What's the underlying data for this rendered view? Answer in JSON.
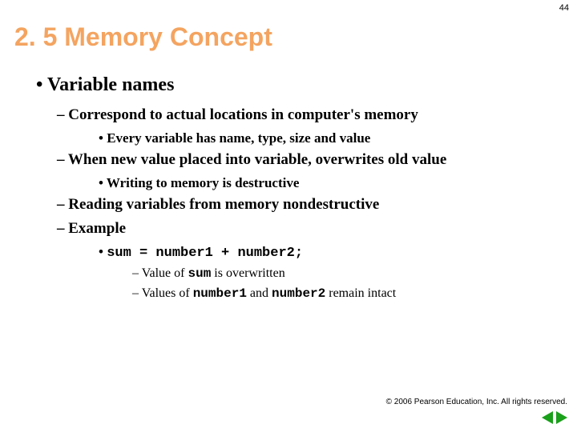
{
  "page_number": "44",
  "title": "2. 5 Memory Concept",
  "bullets": {
    "l1_1": "Variable names",
    "l2_1": "Correspond to actual locations in computer's memory",
    "l3_1": "Every variable has name, type, size and value",
    "l2_2": "When new value placed into variable, overwrites old value",
    "l3_2": "Writing to memory is destructive",
    "l2_3": "Reading variables from memory nondestructive",
    "l2_4": "Example",
    "code_sum": "sum",
    "code_eq": " = ",
    "code_n1": "number1",
    "code_plus": " + ",
    "code_n2": "number2",
    "code_semi": ";",
    "l4_1_a": "Value of ",
    "l4_1_b": "sum",
    "l4_1_c": " is overwritten",
    "l4_2_a": "Values of ",
    "l4_2_b": "number1",
    "l4_2_c": " and ",
    "l4_2_d": "number2",
    "l4_2_e": " remain intact"
  },
  "copyright": "© 2006 Pearson Education, Inc.  All rights reserved.",
  "colors": {
    "title": "#f4a460",
    "nav": "#1aa01a"
  }
}
